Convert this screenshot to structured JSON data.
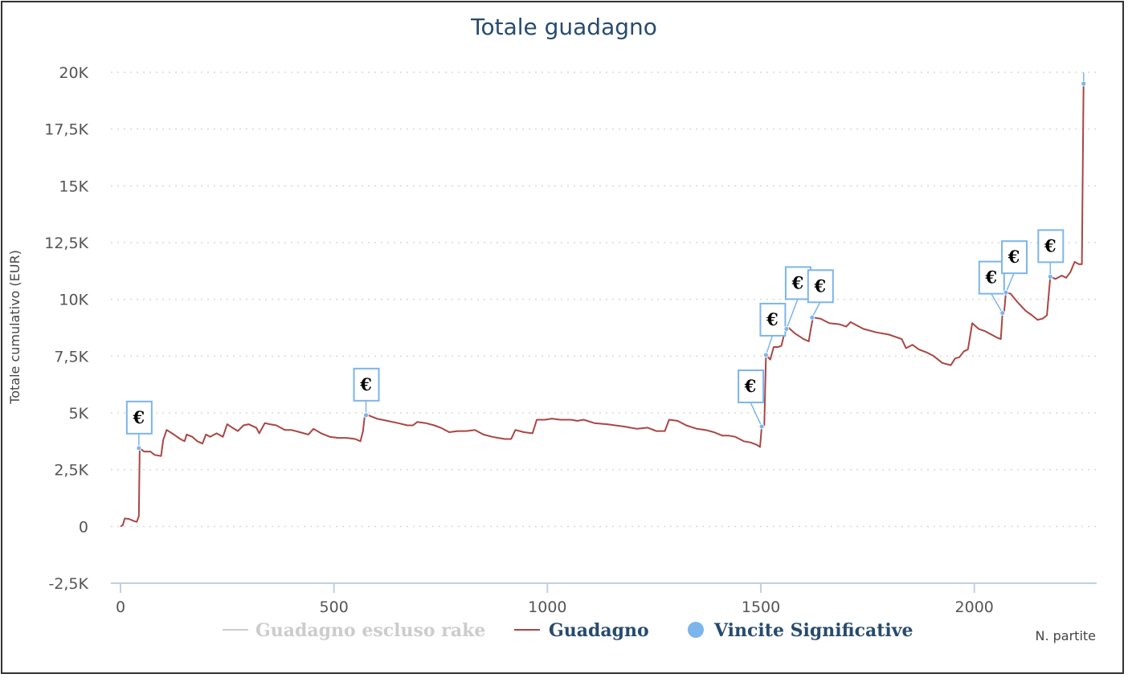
{
  "chart_data": {
    "type": "line",
    "title": "Totale guadagno",
    "xlabel": "N. partite",
    "ylabel": "Totale cumulativo (EUR)",
    "xlim": [
      0,
      2280
    ],
    "ylim": [
      -2500,
      20000
    ],
    "x_ticks": [
      0,
      500,
      1000,
      1500,
      2000
    ],
    "x_tick_labels": [
      "0",
      "500",
      "1000",
      "1500",
      "2000"
    ],
    "y_ticks": [
      -2500,
      0,
      2500,
      5000,
      7500,
      10000,
      12500,
      15000,
      17500,
      20000
    ],
    "y_tick_labels": [
      "-2,5K",
      "0",
      "2,5K",
      "5K",
      "7,5K",
      "10K",
      "12,5K",
      "15K",
      "17,5K",
      "20K"
    ],
    "grid": "horizontal-dotted",
    "legend": {
      "position": "bottom",
      "items": [
        {
          "name": "Guadagno escluso rake",
          "color": "#cccccc",
          "marker": "line",
          "hidden": true
        },
        {
          "name": "Guadagno",
          "color": "#aa4643",
          "marker": "line"
        },
        {
          "name": "Vincite Significative",
          "color": "#7cb5ec",
          "marker": "circle"
        }
      ]
    },
    "series": [
      {
        "name": "Guadagno",
        "color": "#aa4643",
        "points": [
          [
            0,
            0
          ],
          [
            5,
            50
          ],
          [
            10,
            350
          ],
          [
            20,
            330
          ],
          [
            30,
            250
          ],
          [
            38,
            200
          ],
          [
            43,
            450
          ],
          [
            45,
            3450
          ],
          [
            55,
            3300
          ],
          [
            70,
            3300
          ],
          [
            80,
            3150
          ],
          [
            95,
            3100
          ],
          [
            100,
            3800
          ],
          [
            108,
            4250
          ],
          [
            125,
            4050
          ],
          [
            140,
            3850
          ],
          [
            150,
            3750
          ],
          [
            155,
            4050
          ],
          [
            168,
            3950
          ],
          [
            180,
            3750
          ],
          [
            192,
            3650
          ],
          [
            200,
            4050
          ],
          [
            210,
            3950
          ],
          [
            225,
            4100
          ],
          [
            240,
            3950
          ],
          [
            250,
            4500
          ],
          [
            262,
            4350
          ],
          [
            275,
            4200
          ],
          [
            288,
            4450
          ],
          [
            300,
            4500
          ],
          [
            318,
            4350
          ],
          [
            325,
            4100
          ],
          [
            338,
            4550
          ],
          [
            350,
            4500
          ],
          [
            365,
            4450
          ],
          [
            385,
            4250
          ],
          [
            400,
            4250
          ],
          [
            420,
            4150
          ],
          [
            440,
            4050
          ],
          [
            452,
            4300
          ],
          [
            470,
            4100
          ],
          [
            490,
            3950
          ],
          [
            510,
            3900
          ],
          [
            530,
            3900
          ],
          [
            550,
            3850
          ],
          [
            562,
            3750
          ],
          [
            568,
            4200
          ],
          [
            572,
            4850
          ],
          [
            580,
            4900
          ],
          [
            600,
            4750
          ],
          [
            625,
            4650
          ],
          [
            650,
            4550
          ],
          [
            672,
            4450
          ],
          [
            685,
            4450
          ],
          [
            695,
            4600
          ],
          [
            715,
            4550
          ],
          [
            735,
            4450
          ],
          [
            750,
            4350
          ],
          [
            770,
            4150
          ],
          [
            790,
            4200
          ],
          [
            810,
            4200
          ],
          [
            830,
            4250
          ],
          [
            850,
            4050
          ],
          [
            870,
            3950
          ],
          [
            885,
            3900
          ],
          [
            900,
            3850
          ],
          [
            915,
            3850
          ],
          [
            925,
            4250
          ],
          [
            945,
            4150
          ],
          [
            965,
            4100
          ],
          [
            975,
            4700
          ],
          [
            995,
            4700
          ],
          [
            1010,
            4750
          ],
          [
            1030,
            4700
          ],
          [
            1055,
            4700
          ],
          [
            1070,
            4650
          ],
          [
            1085,
            4700
          ],
          [
            1110,
            4550
          ],
          [
            1140,
            4500
          ],
          [
            1180,
            4400
          ],
          [
            1210,
            4300
          ],
          [
            1235,
            4350
          ],
          [
            1255,
            4200
          ],
          [
            1275,
            4200
          ],
          [
            1285,
            4700
          ],
          [
            1305,
            4650
          ],
          [
            1325,
            4450
          ],
          [
            1350,
            4300
          ],
          [
            1370,
            4250
          ],
          [
            1390,
            4150
          ],
          [
            1410,
            4000
          ],
          [
            1425,
            4000
          ],
          [
            1440,
            3950
          ],
          [
            1460,
            3750
          ],
          [
            1475,
            3700
          ],
          [
            1490,
            3600
          ],
          [
            1498,
            3500
          ],
          [
            1502,
            4400
          ],
          [
            1508,
            4450
          ],
          [
            1512,
            7550
          ],
          [
            1522,
            7350
          ],
          [
            1530,
            7900
          ],
          [
            1540,
            7900
          ],
          [
            1548,
            7950
          ],
          [
            1555,
            8500
          ],
          [
            1565,
            8750
          ],
          [
            1580,
            8500
          ],
          [
            1600,
            8250
          ],
          [
            1612,
            8150
          ],
          [
            1617,
            8700
          ],
          [
            1622,
            9200
          ],
          [
            1640,
            9150
          ],
          [
            1660,
            8950
          ],
          [
            1685,
            8900
          ],
          [
            1700,
            8800
          ],
          [
            1710,
            9000
          ],
          [
            1740,
            8700
          ],
          [
            1770,
            8550
          ],
          [
            1800,
            8450
          ],
          [
            1830,
            8250
          ],
          [
            1840,
            7850
          ],
          [
            1855,
            8000
          ],
          [
            1870,
            7800
          ],
          [
            1890,
            7650
          ],
          [
            1905,
            7500
          ],
          [
            1925,
            7200
          ],
          [
            1945,
            7100
          ],
          [
            1955,
            7400
          ],
          [
            1965,
            7450
          ],
          [
            1975,
            7700
          ],
          [
            1985,
            7800
          ],
          [
            1995,
            8950
          ],
          [
            2010,
            8700
          ],
          [
            2025,
            8600
          ],
          [
            2040,
            8450
          ],
          [
            2055,
            8300
          ],
          [
            2062,
            8250
          ],
          [
            2066,
            9400
          ],
          [
            2070,
            9450
          ],
          [
            2074,
            10300
          ],
          [
            2085,
            10250
          ],
          [
            2100,
            9900
          ],
          [
            2120,
            9500
          ],
          [
            2135,
            9300
          ],
          [
            2148,
            9100
          ],
          [
            2160,
            9150
          ],
          [
            2170,
            9300
          ],
          [
            2178,
            11000
          ],
          [
            2190,
            10900
          ],
          [
            2205,
            11050
          ],
          [
            2215,
            10950
          ],
          [
            2225,
            11200
          ],
          [
            2235,
            11650
          ],
          [
            2245,
            11550
          ],
          [
            2252,
            11550
          ],
          [
            2256,
            19500
          ]
        ]
      },
      {
        "name": "Vincite Significative",
        "color": "#7cb5ec",
        "marker": "circle",
        "flag_label": "€",
        "points": [
          [
            43,
            3450
          ],
          [
            575,
            4900
          ],
          [
            1502,
            4400
          ],
          [
            1512,
            7550
          ],
          [
            1560,
            8700
          ],
          [
            1620,
            9200
          ],
          [
            2066,
            9400
          ],
          [
            2074,
            10300
          ],
          [
            2178,
            11000
          ],
          [
            2256,
            19500
          ]
        ]
      }
    ]
  }
}
